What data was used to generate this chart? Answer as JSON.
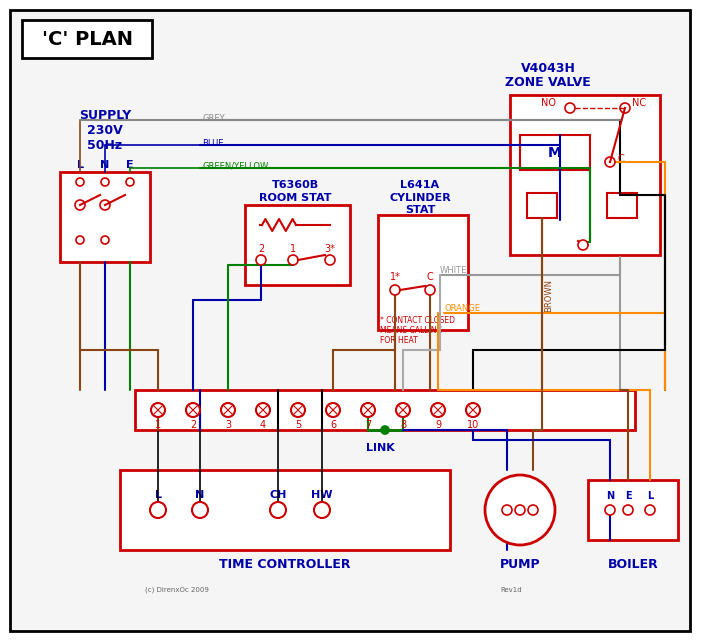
{
  "title": "'C' PLAN",
  "background": "#ffffff",
  "border_color": "#000000",
  "red": "#cc0000",
  "blue": "#0000cc",
  "green": "#008000",
  "brown": "#8B4513",
  "grey": "#808080",
  "orange": "#FF8C00",
  "black": "#000000",
  "dark_blue": "#00008B",
  "supply_text": [
    "SUPPLY",
    "230V",
    "50Hz"
  ],
  "supply_lne": [
    "L",
    "N",
    "E"
  ],
  "zone_valve_title": [
    "V4043H",
    "ZONE VALVE"
  ],
  "room_stat_title": [
    "T6360B",
    "ROOM STAT"
  ],
  "cyl_stat_title": [
    "L641A",
    "CYLINDER",
    "STAT"
  ],
  "time_controller_label": "TIME CONTROLLER",
  "pump_label": "PUMP",
  "boiler_label": "BOILER",
  "terminal_labels": [
    "1",
    "2",
    "3",
    "4",
    "5",
    "6",
    "7",
    "8",
    "9",
    "10"
  ],
  "link_label": "LINK",
  "tc_terminals": [
    "L",
    "N",
    "CH",
    "HW"
  ],
  "wire_colors": {
    "grey": "#888888",
    "blue": "#4444cc",
    "green_yellow": "#228B22",
    "brown": "#8B4513",
    "white": "#999999",
    "orange": "#FF8C00",
    "black": "#111111",
    "dark_blue": "#0000aa"
  }
}
